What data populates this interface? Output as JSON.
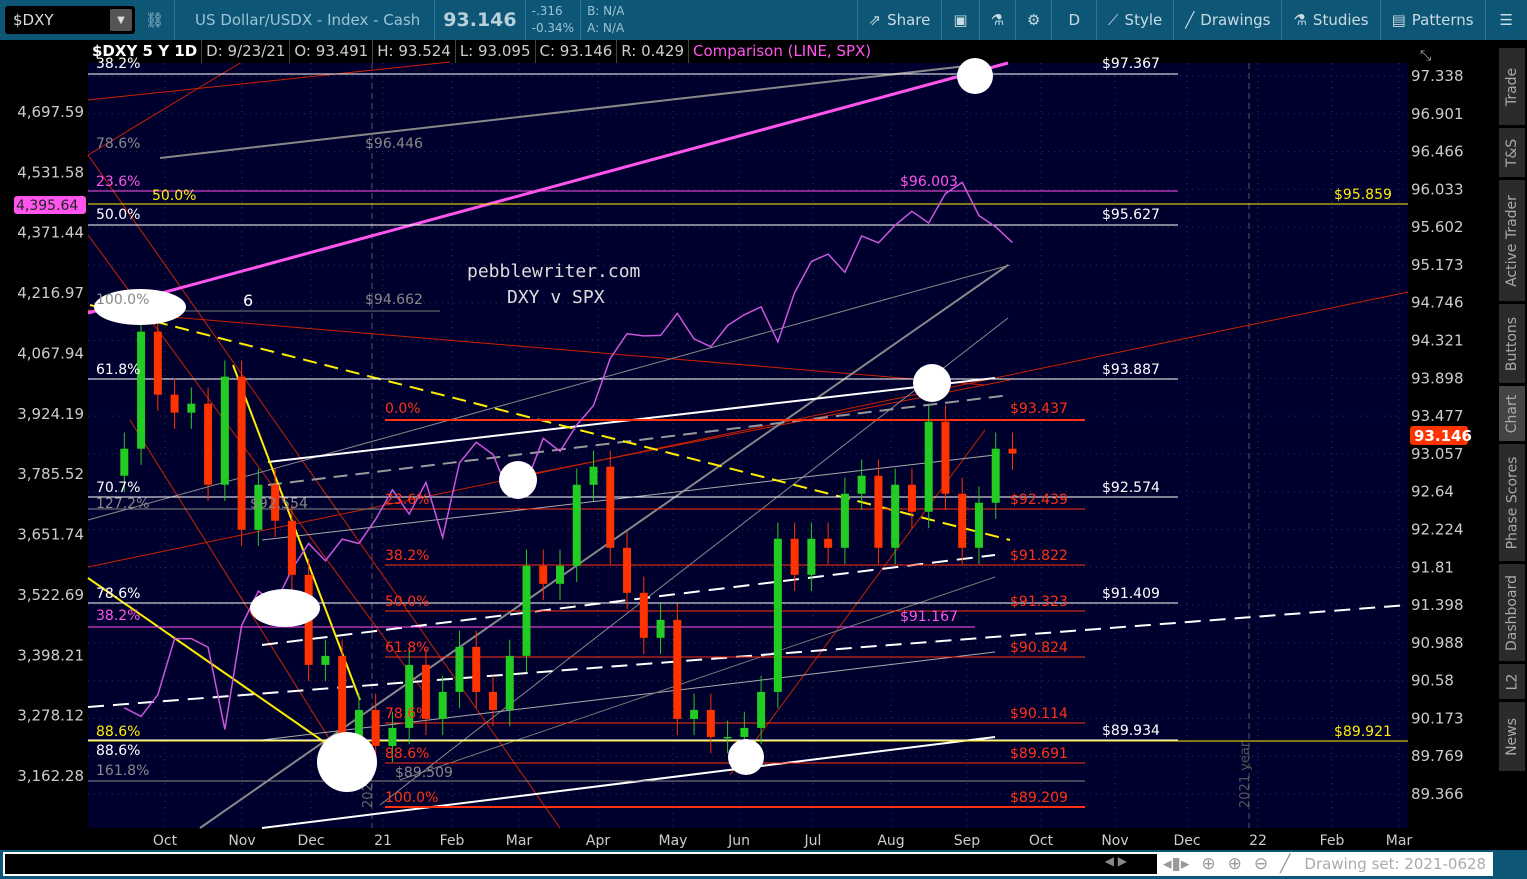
{
  "toolbar": {
    "symbol": "$DXY",
    "description": "US Dollar/USDX - Index - Cash",
    "last": "93.146",
    "change": "-.316",
    "change_pct": "-0.34%",
    "bid": "B: N/A",
    "ask": "A: N/A",
    "share": "Share",
    "aggregation": "D",
    "style": "Style",
    "drawings": "Drawings",
    "studies": "Studies",
    "patterns": "Patterns"
  },
  "header": {
    "title": "$DXY 5 Y 1D",
    "date": "D: 9/23/21",
    "open": "O: 93.491",
    "high": "H: 93.524",
    "low": "L: 93.095",
    "close": "C: 93.146",
    "range": "R: 0.429",
    "comparison": "Comparison (LINE, SPX)"
  },
  "watermark": {
    "line1": "pebblewriter.com",
    "line2": "DXY  v  SPX"
  },
  "colors": {
    "background": "#00002e",
    "up": "#22cc22",
    "down": "#ff3300",
    "comparison": "#cc55dd",
    "fib_orange": "#ff4422",
    "yellow": "#ffee00",
    "toolbar": "#0d5675"
  },
  "right_axis": [
    "97.338",
    "96.901",
    "96.466",
    "96.033",
    "95.602",
    "95.173",
    "94.746",
    "94.321",
    "93.898",
    "93.477",
    "93.057",
    "92.64",
    "92.224",
    "91.81",
    "91.398",
    "90.988",
    "90.58",
    "90.173",
    "89.769",
    "89.366"
  ],
  "left_axis": [
    "4,697.59",
    "4,531.58",
    "4,371.44",
    "4,216.97",
    "4,067.94",
    "3,924.19",
    "3,785.52",
    "3,651.74",
    "3,522.69",
    "3,398.21",
    "3,278.12",
    "3,162.28"
  ],
  "x_axis": [
    "Oct",
    "Nov",
    "Dec",
    "21",
    "Feb",
    "Mar",
    "Apr",
    "May",
    "Jun",
    "Jul",
    "Aug",
    "Sep",
    "Oct",
    "Nov",
    "Dec",
    "22",
    "Feb",
    "Mar"
  ],
  "last_price_tag": "93.146",
  "comparison_tag": "4,395.64",
  "year_markers": [
    "2020 year",
    "2021 year"
  ],
  "labels": {
    "l38top": "38.2%",
    "l786g": "78.6%",
    "p96446": "$96.446",
    "l236p": "23.6%",
    "l50y": "50.0%",
    "l50w": "50.0%",
    "l100g": "100.0%",
    "six": "6",
    "p94662": "$94.662",
    "l618w": "61.8%",
    "l707w": "70.7%",
    "l1272g": "127.2%",
    "p92554": "$92.554",
    "l786w": "78.6%",
    "l382p": "38.2%",
    "l886w": "88.6%",
    "l886y": "88.6%",
    "l1618g": "161.8%",
    "p89509": "$89.509",
    "o0": "0.0%",
    "o236": "23.6%",
    "o382": "38.2%",
    "o50": "50.0%",
    "o618": "61.8%",
    "o786": "78.6%",
    "o886": "88.6%",
    "o100": "100.0%",
    "op0": "$93.437",
    "op236": "$92.439",
    "op382": "$91.822",
    "op50": "$91.323",
    "op618": "$90.824",
    "op786": "$90.114",
    "op886": "$89.691",
    "op100": "$89.209",
    "w97367": "$97.367",
    "w95627": "$95.627",
    "w93887": "$93.887",
    "w92574": "$92.574",
    "w91409": "$91.409",
    "w89934": "$89.934",
    "y95859": "$95.859",
    "y89921": "$89.921",
    "p96003": "$96.003",
    "p91167": "$91.167"
  },
  "sidebar_tabs": [
    "Trade",
    "T&S",
    "Active Trader",
    "Buttons",
    "Chart",
    "Phase Scores",
    "Dashboard",
    "L2",
    "News"
  ],
  "bottom": {
    "drawing_set": "Drawing set: 2021-0628"
  },
  "chart_data": {
    "type": "candlestick with comparison line",
    "title": "$DXY 5 Y 1D",
    "right_axis_range": [
      89.2,
      97.5
    ],
    "left_axis_range": [
      3100,
      4760
    ],
    "grid": true,
    "dxy_weekly_close": [
      [
        "2020-09-14",
        93.2
      ],
      [
        "2020-09-21",
        94.5
      ],
      [
        "2020-09-28",
        93.8
      ],
      [
        "2020-10-05",
        93.6
      ],
      [
        "2020-10-12",
        93.7
      ],
      [
        "2020-10-19",
        92.8
      ],
      [
        "2020-10-26",
        94.0
      ],
      [
        "2020-11-02",
        92.3
      ],
      [
        "2020-11-09",
        92.8
      ],
      [
        "2020-11-16",
        92.4
      ],
      [
        "2020-11-23",
        91.8
      ],
      [
        "2020-11-30",
        90.8
      ],
      [
        "2020-12-07",
        90.9
      ],
      [
        "2020-12-14",
        90.0
      ],
      [
        "2020-12-21",
        90.3
      ],
      [
        "2020-12-28",
        89.9
      ],
      [
        "2021-01-04",
        90.1
      ],
      [
        "2021-01-11",
        90.8
      ],
      [
        "2021-01-18",
        90.2
      ],
      [
        "2021-01-25",
        90.5
      ],
      [
        "2021-02-01",
        91.0
      ],
      [
        "2021-02-08",
        90.5
      ],
      [
        "2021-02-15",
        90.3
      ],
      [
        "2021-02-22",
        90.9
      ],
      [
        "2021-03-01",
        91.9
      ],
      [
        "2021-03-08",
        91.7
      ],
      [
        "2021-03-15",
        91.9
      ],
      [
        "2021-03-22",
        92.8
      ],
      [
        "2021-03-29",
        93.0
      ],
      [
        "2021-04-05",
        92.1
      ],
      [
        "2021-04-12",
        91.6
      ],
      [
        "2021-04-19",
        91.1
      ],
      [
        "2021-04-26",
        91.3
      ],
      [
        "2021-05-03",
        90.2
      ],
      [
        "2021-05-10",
        90.3
      ],
      [
        "2021-05-17",
        90.0
      ],
      [
        "2021-05-24",
        90.0
      ],
      [
        "2021-05-31",
        90.1
      ],
      [
        "2021-06-07",
        90.5
      ],
      [
        "2021-06-14",
        92.2
      ],
      [
        "2021-06-21",
        91.8
      ],
      [
        "2021-06-28",
        92.2
      ],
      [
        "2021-07-05",
        92.1
      ],
      [
        "2021-07-12",
        92.7
      ],
      [
        "2021-07-19",
        92.9
      ],
      [
        "2021-07-26",
        92.1
      ],
      [
        "2021-08-02",
        92.8
      ],
      [
        "2021-08-09",
        92.5
      ],
      [
        "2021-08-16",
        93.5
      ],
      [
        "2021-08-23",
        92.7
      ],
      [
        "2021-08-30",
        92.1
      ],
      [
        "2021-09-06",
        92.6
      ],
      [
        "2021-09-13",
        93.2
      ],
      [
        "2021-09-20",
        93.146
      ]
    ],
    "spx_weekly_close": [
      [
        "2020-09-14",
        3320
      ],
      [
        "2020-09-21",
        3300
      ],
      [
        "2020-09-28",
        3350
      ],
      [
        "2020-10-05",
        3480
      ],
      [
        "2020-10-12",
        3480
      ],
      [
        "2020-10-19",
        3460
      ],
      [
        "2020-10-26",
        3270
      ],
      [
        "2020-11-02",
        3510
      ],
      [
        "2020-11-09",
        3590
      ],
      [
        "2020-11-16",
        3560
      ],
      [
        "2020-11-23",
        3640
      ],
      [
        "2020-11-30",
        3700
      ],
      [
        "2020-12-07",
        3660
      ],
      [
        "2020-12-14",
        3710
      ],
      [
        "2020-12-21",
        3700
      ],
      [
        "2020-12-28",
        3756
      ],
      [
        "2021-01-04",
        3824
      ],
      [
        "2021-01-11",
        3768
      ],
      [
        "2021-01-18",
        3841
      ],
      [
        "2021-01-25",
        3714
      ],
      [
        "2021-02-01",
        3886
      ],
      [
        "2021-02-08",
        3934
      ],
      [
        "2021-02-15",
        3906
      ],
      [
        "2021-02-22",
        3811
      ],
      [
        "2021-03-01",
        3841
      ],
      [
        "2021-03-08",
        3943
      ],
      [
        "2021-03-15",
        3913
      ],
      [
        "2021-03-22",
        3974
      ],
      [
        "2021-03-29",
        4019
      ],
      [
        "2021-04-05",
        4128
      ],
      [
        "2021-04-12",
        4185
      ],
      [
        "2021-04-19",
        4180
      ],
      [
        "2021-04-26",
        4181
      ],
      [
        "2021-05-03",
        4232
      ],
      [
        "2021-05-10",
        4173
      ],
      [
        "2021-05-17",
        4155
      ],
      [
        "2021-05-24",
        4204
      ],
      [
        "2021-05-31",
        4229
      ],
      [
        "2021-06-07",
        4247
      ],
      [
        "2021-06-14",
        4166
      ],
      [
        "2021-06-21",
        4280
      ],
      [
        "2021-06-28",
        4352
      ],
      [
        "2021-07-05",
        4369
      ],
      [
        "2021-07-12",
        4327
      ],
      [
        "2021-07-19",
        4411
      ],
      [
        "2021-07-26",
        4395
      ],
      [
        "2021-08-02",
        4436
      ],
      [
        "2021-08-09",
        4468
      ],
      [
        "2021-08-16",
        4441
      ],
      [
        "2021-08-23",
        4509
      ],
      [
        "2021-08-30",
        4535
      ],
      [
        "2021-09-06",
        4458
      ],
      [
        "2021-09-13",
        4432
      ],
      [
        "2021-09-20",
        4395.64
      ]
    ]
  }
}
